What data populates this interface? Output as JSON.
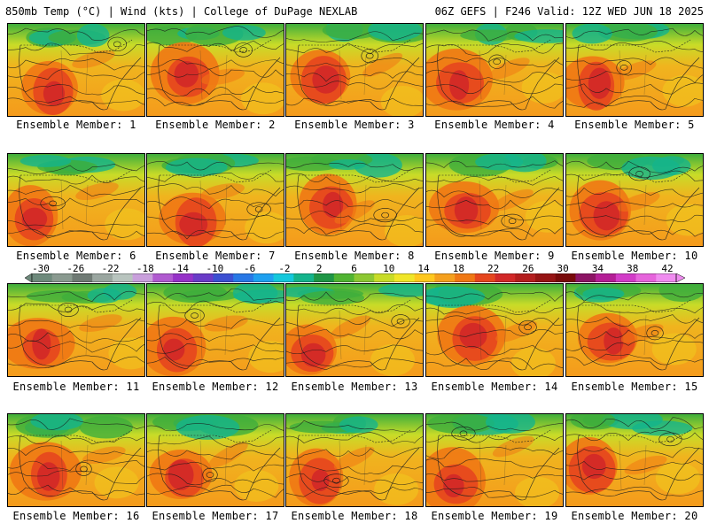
{
  "header": {
    "left": "850mb Temp (°C) | Wind (kts) | College of DuPage NEXLAB",
    "right": "06Z GEFS | F246 Valid: 12Z WED JUN 18 2025"
  },
  "members": [
    {
      "label": "Ensemble Member: 1"
    },
    {
      "label": "Ensemble Member: 2"
    },
    {
      "label": "Ensemble Member: 3"
    },
    {
      "label": "Ensemble Member: 4"
    },
    {
      "label": "Ensemble Member: 5"
    },
    {
      "label": "Ensemble Member: 6"
    },
    {
      "label": "Ensemble Member: 7"
    },
    {
      "label": "Ensemble Member: 8"
    },
    {
      "label": "Ensemble Member: 9"
    },
    {
      "label": "Ensemble Member: 10"
    },
    {
      "label": "Ensemble Member: 11"
    },
    {
      "label": "Ensemble Member: 12"
    },
    {
      "label": "Ensemble Member: 13"
    },
    {
      "label": "Ensemble Member: 14"
    },
    {
      "label": "Ensemble Member: 15"
    },
    {
      "label": "Ensemble Member: 16"
    },
    {
      "label": "Ensemble Member: 17"
    },
    {
      "label": "Ensemble Member: 18"
    },
    {
      "label": "Ensemble Member: 19"
    },
    {
      "label": "Ensemble Member: 20"
    }
  ],
  "colorbar": {
    "ticks": [
      "-30",
      "-26",
      "-22",
      "-18",
      "-14",
      "-10",
      "-6",
      "-2",
      "2",
      "6",
      "10",
      "14",
      "18",
      "22",
      "26",
      "30",
      "34",
      "38",
      "42"
    ],
    "colors": [
      "#6e8a7c",
      "#8a9a90",
      "#6f7a74",
      "#9aa6a0",
      "#b8c4be",
      "#c9a0dc",
      "#b05ad0",
      "#9632c8",
      "#6a3cc8",
      "#3c50d2",
      "#2878e6",
      "#1ea0f0",
      "#14c8dc",
      "#14b48c",
      "#1e9646",
      "#50b432",
      "#8cc832",
      "#c8dc28",
      "#f0e628",
      "#ffc81e",
      "#f5a01e",
      "#f07814",
      "#e6461e",
      "#d22828",
      "#b41e1e",
      "#961414",
      "#780a0a",
      "#8c1464",
      "#b41e96",
      "#d23cc8",
      "#e664dc",
      "#f08cf0"
    ]
  }
}
